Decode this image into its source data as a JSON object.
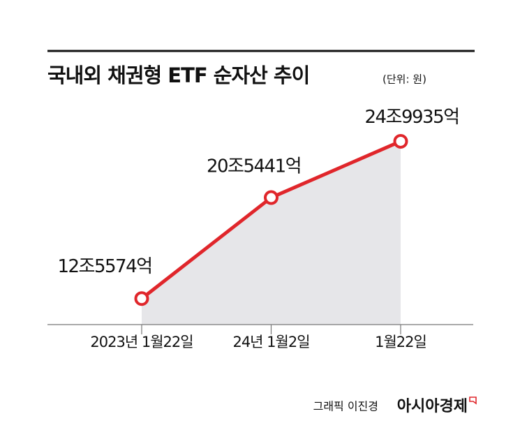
{
  "chart_data": {
    "type": "line",
    "title": "국내외 채권형 ETF 순자산 추이",
    "unit": "(단위: 원)",
    "categories": [
      "2023년 1월22일",
      "24년 1월2일",
      "1월22일"
    ],
    "values": [
      12557400000000,
      20544100000000,
      24993500000000
    ],
    "value_labels": [
      "12조5574억",
      "20조5441억",
      "24조9935억"
    ],
    "color": "#e0262b",
    "area_color": "#e6e6e9",
    "ylim": [
      10500000000000,
      28000000000000
    ],
    "credit": "그래픽 이진경",
    "source": "아시아경제"
  }
}
